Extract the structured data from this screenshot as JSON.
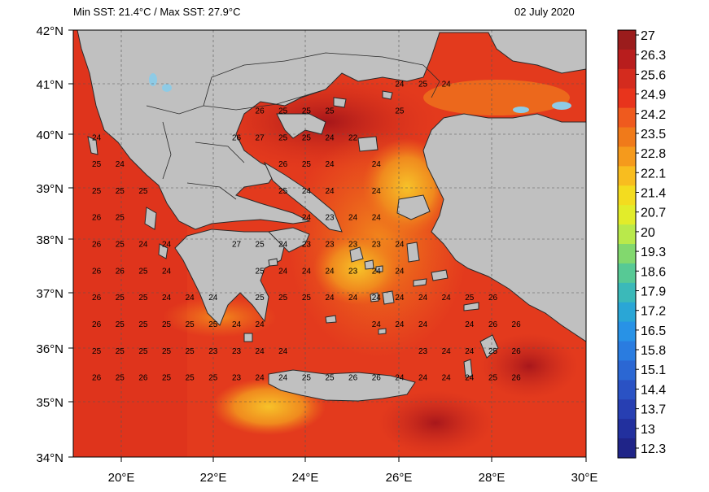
{
  "header": {
    "left_text": "Min SST: 21.4°C / Max SST: 27.9°C",
    "date": "02 July 2020"
  },
  "map": {
    "lat_labels": [
      "42°N",
      "41°N",
      "40°N",
      "39°N",
      "38°N",
      "37°N",
      "36°N",
      "35°N",
      "34°N"
    ],
    "lon_labels": [
      "20°E",
      "22°E",
      "24°E",
      "26°E",
      "28°E",
      "30°E"
    ],
    "colors": {
      "land": "#c0c0c0",
      "sea_warm": "#e8341c",
      "sea_hot": "#b3141a",
      "sea_mild": "#f07a1a",
      "sea_cool": "#f6b324",
      "border": "#2a2a2a"
    },
    "sst_grid": [
      {
        "lat": 41.0,
        "lon": 26.0,
        "value": 24
      },
      {
        "lat": 41.0,
        "lon": 26.5,
        "value": 25
      },
      {
        "lat": 41.0,
        "lon": 27.0,
        "value": 24
      },
      {
        "lat": 40.5,
        "lon": 23.0,
        "value": 26
      },
      {
        "lat": 40.5,
        "lon": 23.5,
        "value": 25
      },
      {
        "lat": 40.5,
        "lon": 24.0,
        "value": 25
      },
      {
        "lat": 40.5,
        "lon": 24.5,
        "value": 25
      },
      {
        "lat": 40.5,
        "lon": 26.0,
        "value": 25
      },
      {
        "lat": 40.0,
        "lon": 19.5,
        "value": 24
      },
      {
        "lat": 40.0,
        "lon": 22.5,
        "value": 26
      },
      {
        "lat": 40.0,
        "lon": 23.0,
        "value": 27
      },
      {
        "lat": 40.0,
        "lon": 23.5,
        "value": 25
      },
      {
        "lat": 40.0,
        "lon": 24.0,
        "value": 25
      },
      {
        "lat": 40.0,
        "lon": 24.5,
        "value": 24
      },
      {
        "lat": 40.0,
        "lon": 25.0,
        "value": 22
      },
      {
        "lat": 39.5,
        "lon": 19.5,
        "value": 25
      },
      {
        "lat": 39.5,
        "lon": 20.0,
        "value": 24
      },
      {
        "lat": 39.5,
        "lon": 23.5,
        "value": 26
      },
      {
        "lat": 39.5,
        "lon": 24.0,
        "value": 25
      },
      {
        "lat": 39.5,
        "lon": 24.5,
        "value": 24
      },
      {
        "lat": 39.5,
        "lon": 25.5,
        "value": 24
      },
      {
        "lat": 39.0,
        "lon": 19.5,
        "value": 25
      },
      {
        "lat": 39.0,
        "lon": 20.0,
        "value": 25
      },
      {
        "lat": 39.0,
        "lon": 20.5,
        "value": 25
      },
      {
        "lat": 39.0,
        "lon": 23.5,
        "value": 25
      },
      {
        "lat": 39.0,
        "lon": 24.0,
        "value": 24
      },
      {
        "lat": 39.0,
        "lon": 24.5,
        "value": 24
      },
      {
        "lat": 39.0,
        "lon": 25.5,
        "value": 24
      },
      {
        "lat": 38.5,
        "lon": 19.5,
        "value": 26
      },
      {
        "lat": 38.5,
        "lon": 20.0,
        "value": 25
      },
      {
        "lat": 38.5,
        "lon": 24.0,
        "value": 24
      },
      {
        "lat": 38.5,
        "lon": 24.5,
        "value": 23
      },
      {
        "lat": 38.5,
        "lon": 25.0,
        "value": 24
      },
      {
        "lat": 38.5,
        "lon": 25.5,
        "value": 24
      },
      {
        "lat": 38.0,
        "lon": 19.5,
        "value": 26
      },
      {
        "lat": 38.0,
        "lon": 20.0,
        "value": 25
      },
      {
        "lat": 38.0,
        "lon": 20.5,
        "value": 24
      },
      {
        "lat": 38.0,
        "lon": 21.0,
        "value": 24
      },
      {
        "lat": 38.0,
        "lon": 22.5,
        "value": 27
      },
      {
        "lat": 38.0,
        "lon": 23.0,
        "value": 25
      },
      {
        "lat": 38.0,
        "lon": 23.5,
        "value": 24
      },
      {
        "lat": 38.0,
        "lon": 24.0,
        "value": 23
      },
      {
        "lat": 38.0,
        "lon": 24.5,
        "value": 23
      },
      {
        "lat": 38.0,
        "lon": 25.0,
        "value": 23
      },
      {
        "lat": 38.0,
        "lon": 25.5,
        "value": 23
      },
      {
        "lat": 38.0,
        "lon": 26.0,
        "value": 24
      },
      {
        "lat": 37.5,
        "lon": 19.5,
        "value": 26
      },
      {
        "lat": 37.5,
        "lon": 20.0,
        "value": 26
      },
      {
        "lat": 37.5,
        "lon": 20.5,
        "value": 25
      },
      {
        "lat": 37.5,
        "lon": 21.0,
        "value": 24
      },
      {
        "lat": 37.5,
        "lon": 23.0,
        "value": 25
      },
      {
        "lat": 37.5,
        "lon": 23.5,
        "value": 24
      },
      {
        "lat": 37.5,
        "lon": 24.0,
        "value": 24
      },
      {
        "lat": 37.5,
        "lon": 24.5,
        "value": 24
      },
      {
        "lat": 37.5,
        "lon": 25.0,
        "value": 23
      },
      {
        "lat": 37.5,
        "lon": 25.5,
        "value": 24
      },
      {
        "lat": 37.5,
        "lon": 26.0,
        "value": 24
      },
      {
        "lat": 37.0,
        "lon": 19.5,
        "value": 26
      },
      {
        "lat": 37.0,
        "lon": 20.0,
        "value": 25
      },
      {
        "lat": 37.0,
        "lon": 20.5,
        "value": 25
      },
      {
        "lat": 37.0,
        "lon": 21.0,
        "value": 24
      },
      {
        "lat": 37.0,
        "lon": 21.5,
        "value": 24
      },
      {
        "lat": 37.0,
        "lon": 22.0,
        "value": 24
      },
      {
        "lat": 37.0,
        "lon": 23.0,
        "value": 25
      },
      {
        "lat": 37.0,
        "lon": 23.5,
        "value": 25
      },
      {
        "lat": 37.0,
        "lon": 24.0,
        "value": 25
      },
      {
        "lat": 37.0,
        "lon": 24.5,
        "value": 24
      },
      {
        "lat": 37.0,
        "lon": 25.0,
        "value": 24
      },
      {
        "lat": 37.0,
        "lon": 25.5,
        "value": 24
      },
      {
        "lat": 37.0,
        "lon": 26.0,
        "value": 24
      },
      {
        "lat": 37.0,
        "lon": 26.5,
        "value": 24
      },
      {
        "lat": 37.0,
        "lon": 27.0,
        "value": 24
      },
      {
        "lat": 37.0,
        "lon": 27.5,
        "value": 25
      },
      {
        "lat": 37.0,
        "lon": 28.0,
        "value": 26
      },
      {
        "lat": 36.5,
        "lon": 19.5,
        "value": 26
      },
      {
        "lat": 36.5,
        "lon": 20.0,
        "value": 25
      },
      {
        "lat": 36.5,
        "lon": 20.5,
        "value": 25
      },
      {
        "lat": 36.5,
        "lon": 21.0,
        "value": 25
      },
      {
        "lat": 36.5,
        "lon": 21.5,
        "value": 25
      },
      {
        "lat": 36.5,
        "lon": 22.0,
        "value": 25
      },
      {
        "lat": 36.5,
        "lon": 22.5,
        "value": 24
      },
      {
        "lat": 36.5,
        "lon": 23.0,
        "value": 24
      },
      {
        "lat": 36.5,
        "lon": 25.5,
        "value": 24
      },
      {
        "lat": 36.5,
        "lon": 26.0,
        "value": 24
      },
      {
        "lat": 36.5,
        "lon": 26.5,
        "value": 24
      },
      {
        "lat": 36.5,
        "lon": 27.5,
        "value": 24
      },
      {
        "lat": 36.5,
        "lon": 28.0,
        "value": 26
      },
      {
        "lat": 36.5,
        "lon": 28.5,
        "value": 26
      },
      {
        "lat": 36.0,
        "lon": 19.5,
        "value": 25
      },
      {
        "lat": 36.0,
        "lon": 20.0,
        "value": 25
      },
      {
        "lat": 36.0,
        "lon": 20.5,
        "value": 25
      },
      {
        "lat": 36.0,
        "lon": 21.0,
        "value": 25
      },
      {
        "lat": 36.0,
        "lon": 21.5,
        "value": 25
      },
      {
        "lat": 36.0,
        "lon": 22.0,
        "value": 23
      },
      {
        "lat": 36.0,
        "lon": 22.5,
        "value": 23
      },
      {
        "lat": 36.0,
        "lon": 23.0,
        "value": 24
      },
      {
        "lat": 36.0,
        "lon": 23.5,
        "value": 24
      },
      {
        "lat": 36.0,
        "lon": 26.5,
        "value": 23
      },
      {
        "lat": 36.0,
        "lon": 27.0,
        "value": 24
      },
      {
        "lat": 36.0,
        "lon": 27.5,
        "value": 24
      },
      {
        "lat": 36.0,
        "lon": 28.0,
        "value": 25
      },
      {
        "lat": 36.0,
        "lon": 28.5,
        "value": 26
      },
      {
        "lat": 35.5,
        "lon": 19.5,
        "value": 26
      },
      {
        "lat": 35.5,
        "lon": 20.0,
        "value": 25
      },
      {
        "lat": 35.5,
        "lon": 20.5,
        "value": 26
      },
      {
        "lat": 35.5,
        "lon": 21.0,
        "value": 25
      },
      {
        "lat": 35.5,
        "lon": 21.5,
        "value": 25
      },
      {
        "lat": 35.5,
        "lon": 22.0,
        "value": 25
      },
      {
        "lat": 35.5,
        "lon": 22.5,
        "value": 23
      },
      {
        "lat": 35.5,
        "lon": 23.0,
        "value": 24
      },
      {
        "lat": 35.5,
        "lon": 23.5,
        "value": 24
      },
      {
        "lat": 35.5,
        "lon": 24.0,
        "value": 25
      },
      {
        "lat": 35.5,
        "lon": 24.5,
        "value": 25
      },
      {
        "lat": 35.5,
        "lon": 25.0,
        "value": 26
      },
      {
        "lat": 35.5,
        "lon": 25.5,
        "value": 26
      },
      {
        "lat": 35.5,
        "lon": 26.0,
        "value": 24
      },
      {
        "lat": 35.5,
        "lon": 26.5,
        "value": 24
      },
      {
        "lat": 35.5,
        "lon": 27.0,
        "value": 24
      },
      {
        "lat": 35.5,
        "lon": 27.5,
        "value": 24
      },
      {
        "lat": 35.5,
        "lon": 28.0,
        "value": 25
      },
      {
        "lat": 35.5,
        "lon": 28.5,
        "value": 26
      }
    ]
  },
  "colorbar": {
    "labels": [
      "27",
      "26.3",
      "25.6",
      "24.9",
      "24.2",
      "23.5",
      "22.8",
      "22.1",
      "21.4",
      "20.7",
      "20",
      "19.3",
      "18.6",
      "17.9",
      "17.2",
      "16.5",
      "15.8",
      "15.1",
      "14.4",
      "13.7",
      "13",
      "12.3"
    ],
    "colors": [
      "#9b1c1c",
      "#b81d1d",
      "#d42b1e",
      "#e8341c",
      "#ef5a1e",
      "#f07a1a",
      "#f59a1c",
      "#f8bd1f",
      "#f3dc1f",
      "#e2ec2a",
      "#b9e94b",
      "#82d86e",
      "#57c995",
      "#3bb9b9",
      "#2aa6d6",
      "#2892e6",
      "#2a7ce0",
      "#2b67d3",
      "#2a52c4",
      "#273fb2",
      "#22309e",
      "#1f2488"
    ]
  }
}
